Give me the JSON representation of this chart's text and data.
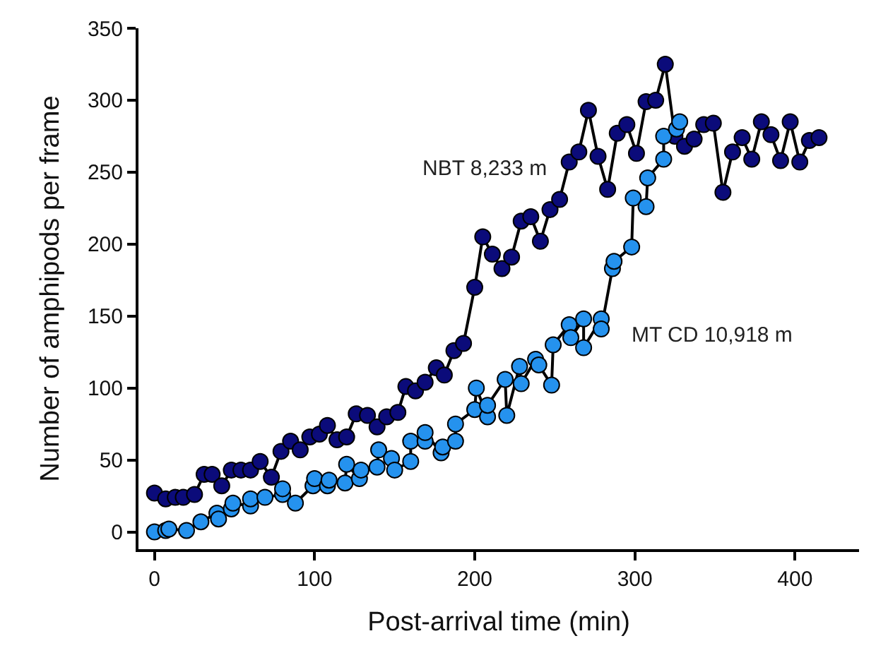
{
  "chart_data": {
    "type": "line",
    "xlabel": "Post-arrival time (min)",
    "ylabel": "Number of amphipods per frame",
    "xlim": [
      -10,
      440
    ],
    "ylim": [
      -12,
      350
    ],
    "xticks": [
      0,
      100,
      200,
      300,
      400
    ],
    "yticks": [
      0,
      50,
      100,
      150,
      200,
      250,
      300,
      350
    ],
    "legend": false,
    "marker": "circle",
    "line_style": "solid",
    "series": [
      {
        "name": "NBT 8,233 m",
        "color": "#0b0b7a",
        "x": [
          0,
          7,
          13,
          18,
          25,
          31,
          36,
          42,
          48,
          54,
          60,
          66,
          73,
          79,
          85,
          91,
          97,
          103,
          108,
          114,
          120,
          126,
          133,
          139,
          145,
          152,
          157,
          163,
          169,
          176,
          181,
          187,
          193,
          200,
          205,
          211,
          217,
          223,
          229,
          235,
          241,
          247,
          253,
          259,
          265,
          271,
          277,
          283,
          289,
          295,
          301,
          307,
          313,
          319,
          325,
          331,
          337,
          343,
          349,
          355,
          361,
          367,
          373,
          379,
          385,
          391,
          397,
          403,
          409,
          415
        ],
        "values": [
          27,
          23,
          24,
          24,
          26,
          40,
          40,
          32,
          43,
          43,
          43,
          49,
          38,
          56,
          63,
          57,
          66,
          68,
          74,
          64,
          66,
          82,
          81,
          73,
          80,
          83,
          101,
          98,
          104,
          114,
          109,
          126,
          131,
          170,
          205,
          193,
          183,
          191,
          216,
          219,
          202,
          224,
          231,
          257,
          264,
          293,
          261,
          238,
          277,
          283,
          263,
          299,
          300,
          325,
          275,
          268,
          273,
          283,
          284,
          236,
          264,
          274,
          259,
          285,
          276,
          258,
          285,
          257,
          272,
          274
        ]
      },
      {
        "name": "MT CD 10,918 m",
        "color": "#2592ee",
        "x": [
          0,
          7,
          9,
          20,
          29,
          39,
          40,
          48,
          49,
          60,
          60,
          69,
          80,
          80,
          88,
          99,
          100,
          108,
          109,
          119,
          120,
          128,
          129,
          139,
          140,
          148,
          150,
          160,
          160,
          169,
          169,
          179,
          180,
          188,
          188,
          200,
          201,
          208,
          208,
          219,
          220,
          228,
          229,
          238,
          240,
          248,
          249,
          259,
          260,
          268,
          268,
          279,
          279,
          286,
          287,
          298,
          299,
          307,
          308,
          318,
          318,
          326,
          328
        ],
        "values": [
          0,
          1,
          2,
          1,
          7,
          13,
          9,
          16,
          20,
          18,
          23,
          24,
          26,
          30,
          20,
          32,
          37,
          32,
          36,
          34,
          47,
          37,
          43,
          45,
          57,
          51,
          43,
          49,
          63,
          63,
          69,
          55,
          59,
          63,
          75,
          85,
          100,
          80,
          88,
          106,
          81,
          115,
          103,
          120,
          116,
          102,
          130,
          144,
          135,
          148,
          128,
          148,
          141,
          183,
          188,
          198,
          232,
          226,
          246,
          259,
          275,
          280,
          285
        ]
      }
    ]
  }
}
